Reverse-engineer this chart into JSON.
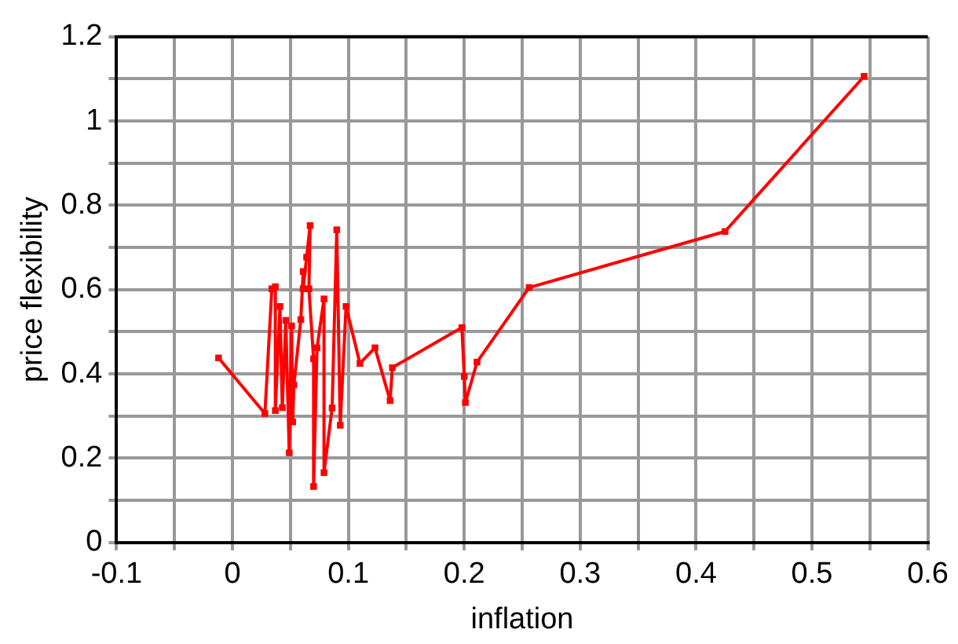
{
  "chart_data": {
    "type": "line",
    "xlabel": "inflation",
    "ylabel": "price flexibility",
    "series": [
      {
        "color": "#ff0000",
        "x": [
          -0.012,
          0.028,
          0.034,
          0.037,
          0.037,
          0.041,
          0.043,
          0.046,
          0.049,
          0.051,
          0.052,
          0.053,
          0.059,
          0.061,
          0.061,
          0.064,
          0.067,
          0.066,
          0.07,
          0.07,
          0.073,
          0.079,
          0.079,
          0.086,
          0.09,
          0.093,
          0.098,
          0.11,
          0.123,
          0.136,
          0.138,
          0.198,
          0.2,
          0.201,
          0.211,
          0.256,
          0.425,
          0.545
        ],
        "values": [
          0.438,
          0.306,
          0.602,
          0.607,
          0.313,
          0.56,
          0.32,
          0.527,
          0.213,
          0.514,
          0.286,
          0.374,
          0.529,
          0.643,
          0.602,
          0.677,
          0.752,
          0.602,
          0.436,
          0.133,
          0.462,
          0.578,
          0.166,
          0.319,
          0.742,
          0.278,
          0.56,
          0.425,
          0.462,
          0.337,
          0.415,
          0.51,
          0.394,
          0.332,
          0.428,
          0.605,
          0.738,
          1.106
        ]
      }
    ],
    "xlim": [
      -0.1,
      0.6
    ],
    "xticks": [
      -0.1,
      {
        "value": -0.05,
        "label": null
      },
      0,
      {
        "value": 0.05,
        "label": null
      },
      0.1,
      {
        "value": 0.15,
        "label": null
      },
      0.2,
      {
        "value": 0.25,
        "label": null
      },
      0.3,
      {
        "value": 0.35,
        "label": null
      },
      0.4,
      {
        "value": 0.45,
        "label": null
      },
      0.5,
      {
        "value": 0.55,
        "label": null
      },
      0.6
    ],
    "ylim": [
      0,
      1.2
    ],
    "yticks": [
      0,
      {
        "value": 0.1,
        "label": null
      },
      0.2,
      {
        "value": 0.3,
        "label": null
      },
      0.4,
      {
        "value": 0.5,
        "label": null
      },
      0.6,
      {
        "value": 0.7,
        "label": null
      },
      0.8,
      {
        "value": 0.9,
        "label": null
      },
      1,
      {
        "value": 1.1,
        "label": null
      },
      1.2
    ],
    "grid": true,
    "marker": "square",
    "line_style": "solid",
    "legend": false
  }
}
